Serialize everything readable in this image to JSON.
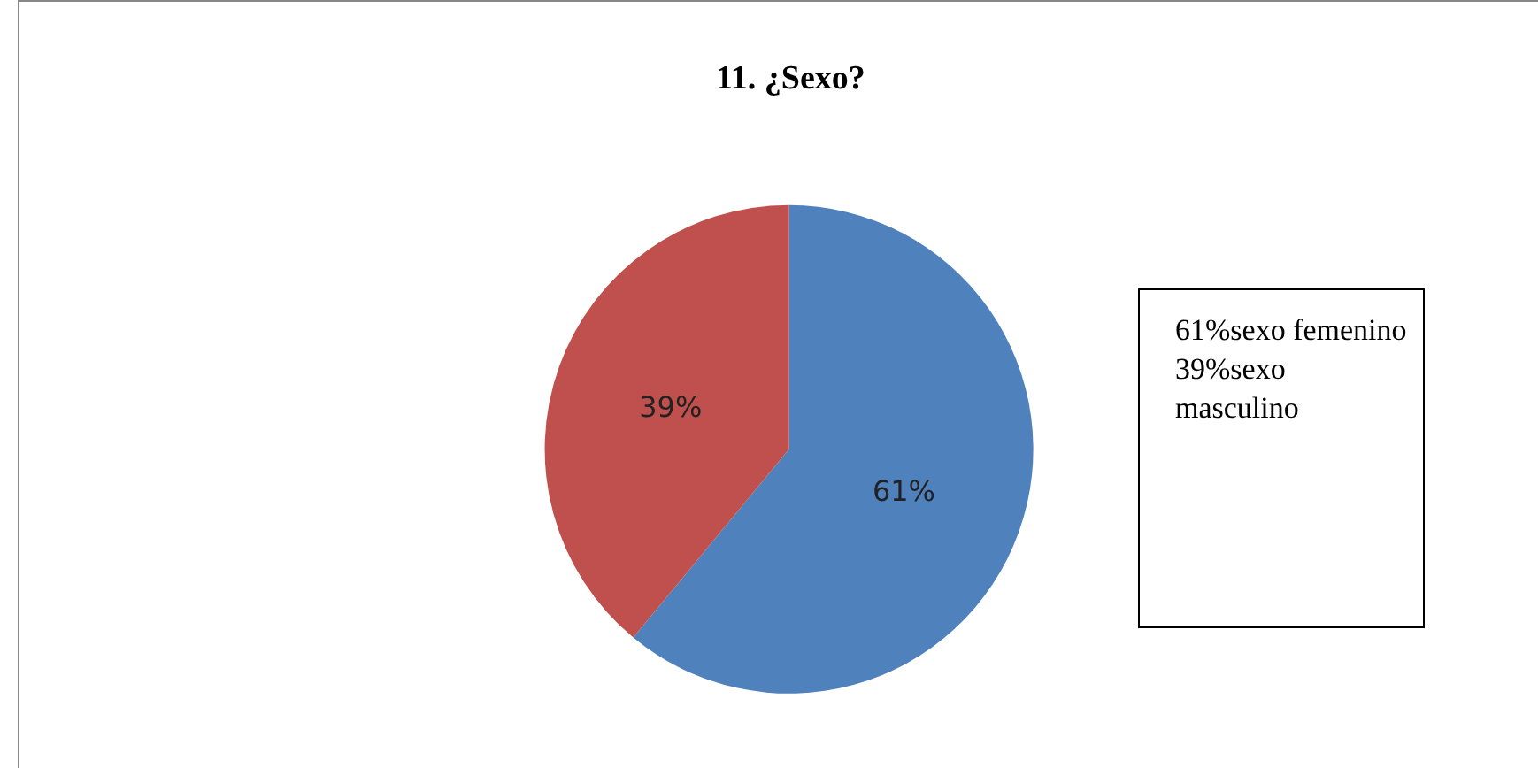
{
  "chart_data": {
    "type": "pie",
    "title": "11. ¿Sexo?",
    "categories": [
      null,
      null
    ],
    "values": [
      61,
      39
    ],
    "colors": [
      "#4f81bd",
      "#c0504d"
    ],
    "value_labels": [
      "61%",
      "39%"
    ],
    "annotations": [
      "61%sexo femenino 39%sexo masculino"
    ],
    "legend": false
  }
}
